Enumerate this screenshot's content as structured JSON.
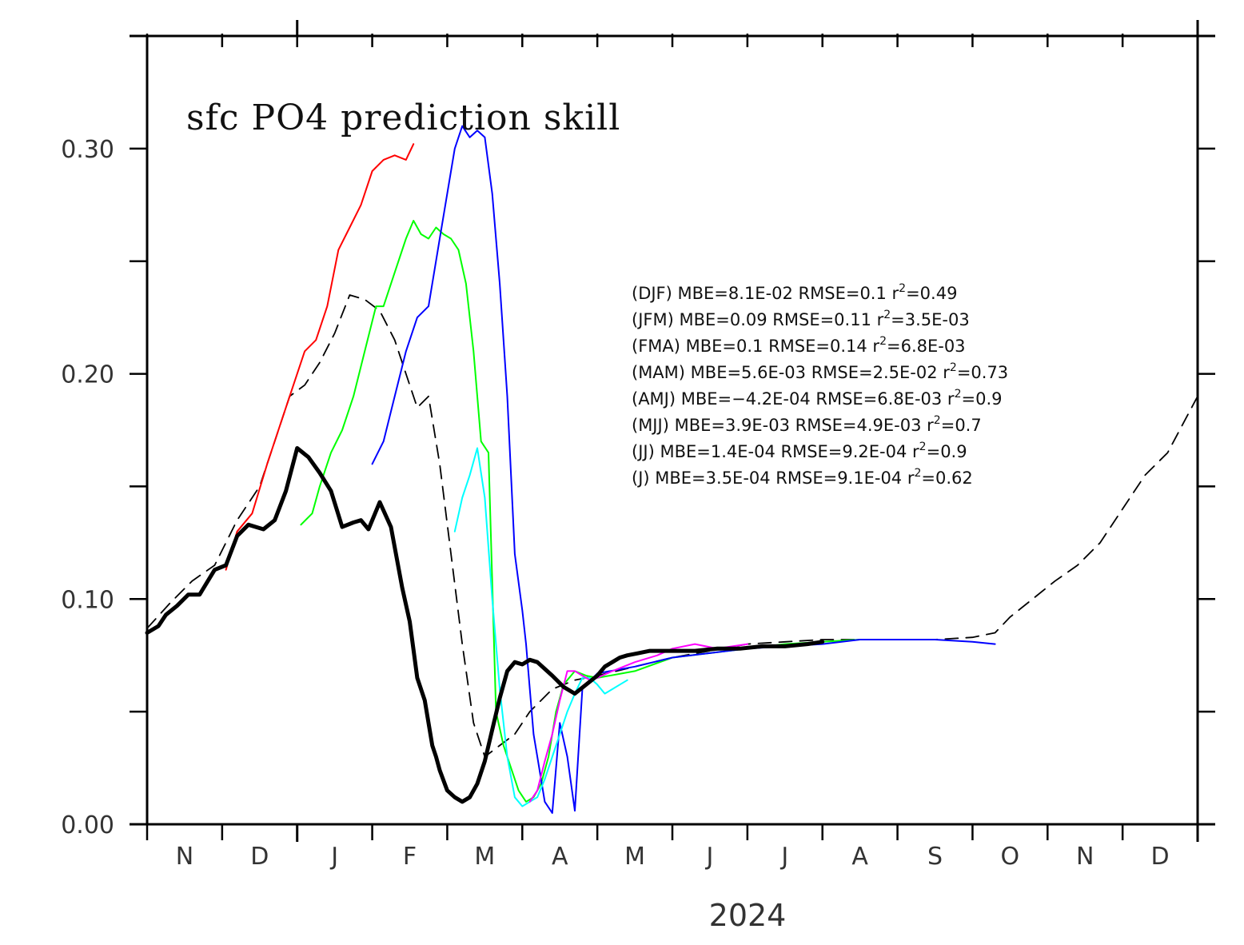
{
  "chart_data": {
    "type": "line",
    "title": "sfc PO4 prediction skill",
    "xlabel": "2024",
    "ylabel": "",
    "ylim": [
      0,
      0.35
    ],
    "y_ticks": [
      0.0,
      0.05,
      0.1,
      0.15,
      0.2,
      0.25,
      0.3
    ],
    "y_tick_labels": [
      "0.00",
      "0.10",
      "0.20",
      "0.30"
    ],
    "y_tick_label_values": [
      0.0,
      0.1,
      0.2,
      0.3
    ],
    "x_axis_months": [
      "N",
      "D",
      "J",
      "F",
      "M",
      "A",
      "M",
      "J",
      "J",
      "A",
      "S",
      "O",
      "N",
      "D"
    ],
    "x_range_months": [
      0,
      14
    ],
    "x_unit": "months from start of November 2023",
    "grid": false,
    "annotations": [
      {
        "label": "(DJF)",
        "text": "MBE=8.1E-02   RMSE=0.1   r²=0.49"
      },
      {
        "label": "(JFM)",
        "text": "MBE=0.09   RMSE=0.11   r²=3.5E-03"
      },
      {
        "label": "(FMA)",
        "text": "MBE=0.1   RMSE=0.14   r²=6.8E-03"
      },
      {
        "label": "(MAM)",
        "text": "MBE=5.6E-03   RMSE=2.5E-02   r²=0.73"
      },
      {
        "label": "(AMJ)",
        "text": "MBE=−4.2E-04   RMSE=6.8E-03   r²=0.9"
      },
      {
        "label": "(MJJ)",
        "text": "MBE=3.9E-03   RMSE=4.9E-03   r²=0.7"
      },
      {
        "label": "(JJ)",
        "text": "MBE=1.4E-04   RMSE=9.2E-04   r²=0.9"
      },
      {
        "label": "(J)",
        "text": "MBE=3.5E-04   RMSE=9.1E-04   r²=0.62"
      }
    ],
    "series": [
      {
        "color": "#000000",
        "width": 5,
        "dash": "none",
        "x": [
          0.0,
          0.15,
          0.25,
          0.4,
          0.55,
          0.7,
          0.9,
          1.05,
          1.2,
          1.35,
          1.55,
          1.7,
          1.85,
          2.0,
          2.15,
          2.3,
          2.45,
          2.6,
          2.75,
          2.85,
          2.95,
          3.1,
          3.25,
          3.4,
          3.5,
          3.6,
          3.7,
          3.8,
          3.85,
          3.9,
          4.0,
          4.1,
          4.2,
          4.3,
          4.4,
          4.5,
          4.6,
          4.7,
          4.8,
          4.9,
          5.0,
          5.1,
          5.2,
          5.3,
          5.4,
          5.55,
          5.7,
          5.85,
          6.0,
          6.1,
          6.2,
          6.3,
          6.4,
          6.55,
          6.7,
          6.85,
          7.0,
          7.3,
          7.6,
          7.9,
          8.2,
          8.5,
          8.8,
          9.0
        ],
        "y": [
          0.085,
          0.088,
          0.093,
          0.097,
          0.102,
          0.102,
          0.113,
          0.115,
          0.128,
          0.133,
          0.131,
          0.135,
          0.148,
          0.167,
          0.163,
          0.156,
          0.148,
          0.132,
          0.134,
          0.135,
          0.131,
          0.143,
          0.132,
          0.105,
          0.09,
          0.065,
          0.055,
          0.035,
          0.03,
          0.024,
          0.015,
          0.012,
          0.01,
          0.012,
          0.018,
          0.028,
          0.042,
          0.056,
          0.068,
          0.072,
          0.071,
          0.073,
          0.072,
          0.069,
          0.066,
          0.061,
          0.058,
          0.062,
          0.066,
          0.07,
          0.072,
          0.074,
          0.075,
          0.076,
          0.077,
          0.077,
          0.077,
          0.077,
          0.078,
          0.078,
          0.079,
          0.079,
          0.08,
          0.081
        ]
      },
      {
        "color": "#000000",
        "width": 1.8,
        "dash": "16,10",
        "x": [
          0.0,
          0.3,
          0.6,
          0.9,
          1.2,
          1.5,
          1.7,
          1.9,
          2.1,
          2.3,
          2.5,
          2.7,
          2.9,
          3.1,
          3.3,
          3.45,
          3.6,
          3.75,
          3.9,
          4.05,
          4.2,
          4.35,
          4.5,
          4.7,
          4.9,
          5.1,
          5.4,
          5.7,
          6.0,
          6.5,
          7.0,
          7.5,
          8.0,
          8.5,
          9.0,
          9.5,
          10.0,
          10.5,
          11.0,
          11.3,
          11.5,
          11.8,
          12.1,
          12.4,
          12.7,
          13.0,
          13.3,
          13.6,
          14.0
        ],
        "y": [
          0.087,
          0.098,
          0.108,
          0.115,
          0.135,
          0.15,
          0.17,
          0.19,
          0.195,
          0.205,
          0.218,
          0.235,
          0.233,
          0.228,
          0.215,
          0.2,
          0.185,
          0.19,
          0.16,
          0.12,
          0.08,
          0.045,
          0.03,
          0.035,
          0.04,
          0.05,
          0.06,
          0.064,
          0.066,
          0.07,
          0.074,
          0.077,
          0.08,
          0.081,
          0.082,
          0.082,
          0.082,
          0.082,
          0.083,
          0.085,
          0.092,
          0.1,
          0.108,
          0.115,
          0.125,
          0.14,
          0.155,
          0.165,
          0.19
        ]
      },
      {
        "color": "#ff0000",
        "width": 2,
        "dash": "none",
        "x": [
          1.05,
          1.2,
          1.4,
          1.6,
          1.8,
          2.0,
          2.1,
          2.25,
          2.4,
          2.55,
          2.7,
          2.85,
          3.0,
          3.15,
          3.3,
          3.45,
          3.55
        ],
        "y": [
          0.113,
          0.13,
          0.138,
          0.16,
          0.18,
          0.2,
          0.21,
          0.215,
          0.23,
          0.255,
          0.265,
          0.275,
          0.29,
          0.295,
          0.297,
          0.295,
          0.302
        ]
      },
      {
        "color": "#00ff00",
        "width": 2,
        "dash": "none",
        "x": [
          2.05,
          2.2,
          2.3,
          2.45,
          2.6,
          2.75,
          2.9,
          3.05,
          3.15,
          3.3,
          3.45,
          3.55,
          3.65,
          3.75,
          3.85,
          3.95,
          4.05,
          4.15,
          4.25,
          4.35,
          4.45,
          4.55,
          4.65,
          4.75,
          4.85,
          4.95,
          5.05,
          5.15,
          5.25,
          5.35,
          5.45,
          5.55,
          5.7,
          5.85,
          6.0,
          6.5,
          7.0,
          7.5,
          8.0,
          8.5,
          9.0,
          9.5,
          10.0
        ],
        "y": [
          0.133,
          0.138,
          0.15,
          0.165,
          0.175,
          0.19,
          0.21,
          0.23,
          0.23,
          0.245,
          0.26,
          0.268,
          0.262,
          0.26,
          0.265,
          0.262,
          0.26,
          0.255,
          0.24,
          0.21,
          0.17,
          0.165,
          0.05,
          0.035,
          0.025,
          0.015,
          0.01,
          0.012,
          0.018,
          0.03,
          0.05,
          0.062,
          0.068,
          0.066,
          0.065,
          0.068,
          0.074,
          0.076,
          0.078,
          0.08,
          0.081,
          0.082,
          0.082
        ]
      },
      {
        "color": "#0000ff",
        "width": 2,
        "dash": "none",
        "x": [
          3.0,
          3.15,
          3.3,
          3.45,
          3.6,
          3.75,
          3.9,
          4.0,
          4.1,
          4.2,
          4.3,
          4.4,
          4.5,
          4.6,
          4.7,
          4.8,
          4.9,
          5.0,
          5.05,
          5.1,
          5.15,
          5.2,
          5.3,
          5.4,
          5.5,
          5.6,
          5.7,
          5.8,
          6.0,
          6.5,
          7.0,
          7.5,
          8.0,
          8.5,
          9.0,
          9.5,
          10.0,
          10.5,
          11.0,
          11.3
        ],
        "y": [
          0.16,
          0.17,
          0.19,
          0.21,
          0.225,
          0.23,
          0.26,
          0.28,
          0.3,
          0.31,
          0.305,
          0.308,
          0.305,
          0.28,
          0.24,
          0.19,
          0.12,
          0.095,
          0.08,
          0.06,
          0.04,
          0.03,
          0.01,
          0.005,
          0.045,
          0.03,
          0.006,
          0.06,
          0.067,
          0.07,
          0.074,
          0.076,
          0.078,
          0.079,
          0.08,
          0.082,
          0.082,
          0.082,
          0.081,
          0.08
        ]
      },
      {
        "color": "#00ffff",
        "width": 2,
        "dash": "none",
        "x": [
          4.1,
          4.2,
          4.3,
          4.4,
          4.5,
          4.6,
          4.7,
          4.8,
          4.9,
          5.0,
          5.1,
          5.2,
          5.3,
          5.4,
          5.5,
          5.6,
          5.7,
          5.8,
          5.9,
          6.0,
          6.1,
          6.2,
          6.3,
          6.4
        ],
        "y": [
          0.13,
          0.145,
          0.155,
          0.167,
          0.145,
          0.1,
          0.06,
          0.03,
          0.012,
          0.008,
          0.01,
          0.012,
          0.02,
          0.03,
          0.04,
          0.05,
          0.058,
          0.065,
          0.065,
          0.062,
          0.058,
          0.06,
          0.062,
          0.064
        ]
      },
      {
        "color": "#ff00ff",
        "width": 2,
        "dash": "none",
        "x": [
          5.1,
          5.2,
          5.3,
          5.4,
          5.5,
          5.6,
          5.7,
          5.8,
          5.9,
          6.0,
          6.2,
          6.5,
          6.8,
          7.0,
          7.3,
          7.6,
          7.8,
          8.0
        ],
        "y": [
          0.01,
          0.015,
          0.028,
          0.04,
          0.055,
          0.068,
          0.068,
          0.066,
          0.064,
          0.065,
          0.068,
          0.072,
          0.075,
          0.078,
          0.08,
          0.078,
          0.079,
          0.08
        ]
      }
    ]
  }
}
